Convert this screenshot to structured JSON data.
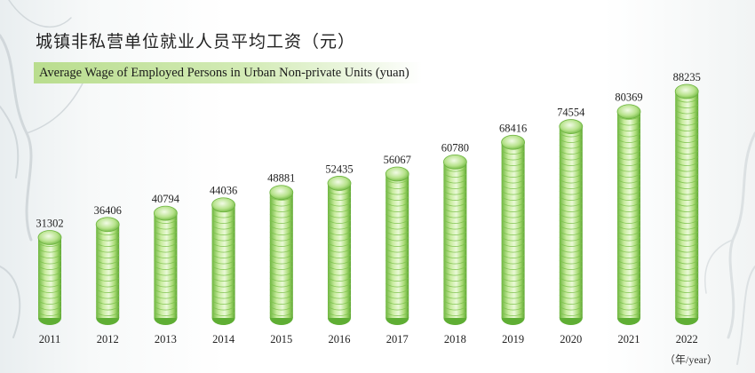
{
  "chart_data": {
    "type": "bar",
    "title": "城镇非私营单位就业人员平均工资（元）",
    "subtitle": "Average Wage of Employed Persons in Urban Non-private Units (yuan)",
    "categories": [
      "2011",
      "2012",
      "2013",
      "2014",
      "2015",
      "2016",
      "2017",
      "2018",
      "2019",
      "2020",
      "2021",
      "2022"
    ],
    "values": [
      31302,
      36406,
      40794,
      44036,
      48881,
      52435,
      56067,
      60780,
      68416,
      74554,
      80369,
      88235
    ],
    "xlabel": "（年/year）",
    "ylabel": "",
    "ylim": [
      0,
      88235
    ],
    "grid": false,
    "colors": {
      "bar_light": "#eaf7d6",
      "bar_mid": "#9fd66a",
      "bar_dark": "#5fae34"
    }
  }
}
